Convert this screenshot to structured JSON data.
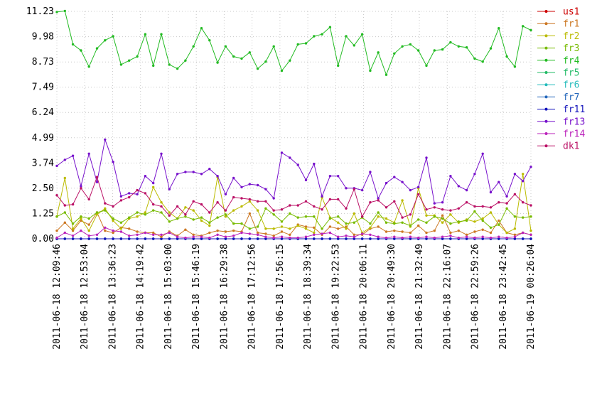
{
  "chart_data": {
    "type": "line",
    "title": "",
    "xlabel": "",
    "ylabel": "",
    "ylim": [
      0,
      11.23
    ],
    "grid": "dotted-both",
    "legend_position": "right",
    "yticks": [
      "0.00",
      "1.25",
      "2.50",
      "3.74",
      "4.99",
      "6.24",
      "7.49",
      "8.73",
      "9.98",
      "11.23"
    ],
    "xticks": [
      "2011-06-18 12:09:46",
      "2011-06-18 12:53:04",
      "2011-06-18 13:36:23",
      "2011-06-18 14:19:42",
      "2011-06-18 15:03:00",
      "2011-06-18 15:46:19",
      "2011-06-18 16:29:38",
      "2011-06-18 17:12:56",
      "2011-06-18 17:56:15",
      "2011-06-18 18:39:34",
      "2011-06-18 19:22:53",
      "2011-06-18 20:06:11",
      "2011-06-18 20:49:30",
      "2011-06-18 21:32:49",
      "2011-06-18 22:16:07",
      "2011-06-18 22:59:26",
      "2011-06-18 23:42:45",
      "2011-06-19 00:26:04"
    ],
    "points_per_series": 60,
    "series": [
      {
        "name": "us1",
        "color": "#cc0000",
        "values": [
          0,
          0,
          0,
          0,
          0,
          0,
          0,
          0,
          0,
          0,
          0,
          0,
          0,
          0,
          0,
          0,
          0,
          0,
          0,
          0,
          0,
          0,
          0,
          0,
          0,
          0,
          0,
          0,
          0,
          0,
          0,
          0,
          0,
          0,
          0,
          0,
          0,
          0,
          0,
          0,
          0,
          0,
          0,
          0,
          0,
          0,
          0,
          0,
          0,
          0,
          0,
          0,
          0,
          0,
          0,
          0,
          0,
          0,
          0,
          0
        ]
      },
      {
        "name": "fr1",
        "color": "#cc7722",
        "values": [
          0.4,
          0.8,
          0.4,
          0.9,
          0.7,
          1.3,
          0.4,
          0.3,
          0.55,
          0.5,
          0.35,
          0.3,
          0.3,
          0.1,
          0.35,
          0.15,
          0.45,
          0.2,
          0.15,
          0.3,
          0.4,
          0.35,
          0.4,
          0.35,
          1.25,
          0.3,
          0.25,
          0.15,
          0.35,
          0.2,
          0.7,
          0.6,
          0.55,
          0.2,
          0.6,
          0.5,
          0.6,
          0.2,
          0.2,
          0.5,
          0.6,
          0.35,
          0.4,
          0.35,
          0.3,
          0.65,
          0.3,
          0.4,
          1.15,
          0.3,
          0.4,
          0.2,
          0.35,
          0.45,
          0.3,
          0.9,
          0.3,
          0.2,
          0.3,
          0.2
        ]
      },
      {
        "name": "fr2",
        "color": "#bbbb00",
        "values": [
          1.1,
          3.0,
          0.5,
          1.0,
          0.4,
          1.2,
          1.5,
          0.9,
          0.5,
          1.0,
          1.1,
          1.3,
          2.55,
          1.8,
          1.3,
          1.0,
          1.55,
          1.4,
          0.9,
          0.65,
          3.05,
          1.1,
          1.4,
          1.6,
          1.85,
          1.4,
          0.5,
          0.5,
          0.6,
          0.5,
          0.65,
          0.5,
          0.3,
          2.05,
          1.05,
          0.8,
          0.5,
          1.25,
          0.3,
          0.55,
          1.1,
          1.0,
          0.8,
          1.9,
          0.6,
          2.5,
          1.15,
          1.15,
          0.8,
          1.2,
          0.8,
          0.95,
          0.85,
          1.0,
          1.3,
          0.7,
          0.3,
          0.5,
          3.2,
          0.4
        ]
      },
      {
        "name": "fr3",
        "color": "#77bb00",
        "values": [
          1.1,
          1.3,
          0.75,
          1.1,
          1.0,
          1.3,
          1.4,
          1.0,
          0.8,
          1.05,
          1.3,
          1.2,
          1.4,
          1.3,
          0.85,
          1.0,
          1.1,
          0.95,
          1.05,
          0.8,
          1.05,
          1.2,
          0.75,
          0.75,
          0.5,
          0.6,
          1.5,
          1.2,
          0.85,
          1.25,
          1.05,
          1.1,
          1.1,
          0.5,
          1.0,
          1.1,
          0.75,
          0.8,
          1.05,
          0.75,
          1.3,
          0.8,
          0.75,
          0.8,
          0.65,
          0.95,
          0.8,
          1.1,
          1.0,
          0.75,
          0.85,
          0.9,
          1.35,
          0.9,
          0.55,
          0.7,
          1.5,
          1.1,
          1.05,
          1.1
        ]
      },
      {
        "name": "fr4",
        "color": "#22bb22",
        "values": [
          11.2,
          11.25,
          9.6,
          9.3,
          8.5,
          9.4,
          9.8,
          10.0,
          8.6,
          8.8,
          9.0,
          10.1,
          8.55,
          10.1,
          8.6,
          8.4,
          8.8,
          9.5,
          10.4,
          9.8,
          8.7,
          9.5,
          9.0,
          8.9,
          9.2,
          8.4,
          8.75,
          9.5,
          8.3,
          8.8,
          9.6,
          9.65,
          10.0,
          10.1,
          10.45,
          8.55,
          10.0,
          9.55,
          10.1,
          8.3,
          9.2,
          8.1,
          9.15,
          9.5,
          9.6,
          9.3,
          8.55,
          9.3,
          9.35,
          9.7,
          9.5,
          9.45,
          8.9,
          8.75,
          9.4,
          10.4,
          9.0,
          8.5,
          10.5,
          10.3
        ]
      },
      {
        "name": "fr5",
        "color": "#22bb66",
        "values": [
          0,
          0,
          0,
          0,
          0,
          0,
          0,
          0,
          0,
          0,
          0,
          0,
          0,
          0,
          0,
          0,
          0,
          0,
          0,
          0,
          0,
          0,
          0,
          0,
          0,
          0,
          0,
          0,
          0,
          0,
          0,
          0,
          0,
          0,
          0,
          0,
          0,
          0,
          0,
          0,
          0,
          0,
          0,
          0,
          0,
          0,
          0,
          0,
          0,
          0,
          0,
          0,
          0,
          0,
          0,
          0,
          0,
          0,
          0,
          0
        ]
      },
      {
        "name": "fr6",
        "color": "#22bbbb",
        "values": [
          0,
          0,
          0,
          0,
          0,
          0,
          0,
          0,
          0,
          0,
          0,
          0,
          0,
          0,
          0,
          0,
          0,
          0,
          0,
          0,
          0,
          0,
          0,
          0,
          0,
          0,
          0,
          0,
          0,
          0,
          0,
          0,
          0,
          0,
          0,
          0,
          0,
          0,
          0,
          0,
          0,
          0,
          0,
          0,
          0,
          0,
          0,
          0,
          0,
          0,
          0,
          0,
          0,
          0,
          0,
          0,
          0,
          0,
          0,
          0
        ]
      },
      {
        "name": "fr7",
        "color": "#2266bb",
        "values": [
          0,
          0,
          0,
          0,
          0,
          0,
          0,
          0,
          0,
          0,
          0,
          0,
          0,
          0,
          0,
          0,
          0,
          0,
          0,
          0,
          0,
          0,
          0,
          0,
          0,
          0,
          0,
          0,
          0,
          0,
          0,
          0,
          0,
          0,
          0,
          0,
          0,
          0,
          0,
          0,
          0,
          0,
          0,
          0,
          0,
          0,
          0,
          0,
          0,
          0,
          0,
          0,
          0,
          0,
          0,
          0,
          0,
          0,
          0,
          0
        ]
      },
      {
        "name": "fr11",
        "color": "#1111bb",
        "values": [
          0,
          0,
          0,
          0,
          0,
          0,
          0,
          0,
          0,
          0,
          0,
          0,
          0,
          0,
          0,
          0,
          0,
          0,
          0,
          0,
          0,
          0,
          0,
          0,
          0,
          0,
          0,
          0,
          0,
          0,
          0,
          0,
          0,
          0,
          0,
          0,
          0,
          0,
          0,
          0,
          0,
          0,
          0,
          0,
          0,
          0,
          0,
          0,
          0,
          0,
          0,
          0,
          0,
          0,
          0,
          0,
          0,
          0,
          0,
          0
        ]
      },
      {
        "name": "fr13",
        "color": "#7711cc",
        "values": [
          3.6,
          3.9,
          4.1,
          2.6,
          4.2,
          2.8,
          4.9,
          3.8,
          2.1,
          2.25,
          2.2,
          3.1,
          2.75,
          4.2,
          2.45,
          3.2,
          3.3,
          3.3,
          3.2,
          3.45,
          3.1,
          2.2,
          3.0,
          2.55,
          2.7,
          2.65,
          2.45,
          2.0,
          4.25,
          4.0,
          3.65,
          2.9,
          3.7,
          2.1,
          3.1,
          3.1,
          2.5,
          2.5,
          2.4,
          3.3,
          2.0,
          2.75,
          3.05,
          2.8,
          2.4,
          2.55,
          4.0,
          1.75,
          1.8,
          3.1,
          2.6,
          2.4,
          3.2,
          4.2,
          2.3,
          2.8,
          2.1,
          3.2,
          2.85,
          3.55
        ]
      },
      {
        "name": "fr14",
        "color": "#bb22bb",
        "values": [
          0.05,
          0.3,
          0.15,
          0.4,
          0.15,
          0.2,
          0.55,
          0.4,
          0.35,
          0.15,
          0.2,
          0.3,
          0.2,
          0.2,
          0.3,
          0.1,
          0.05,
          0.1,
          0.1,
          0.05,
          0.2,
          0.1,
          0.15,
          0.3,
          0.25,
          0.2,
          0.1,
          0.05,
          0.1,
          0.05,
          0.05,
          0.1,
          0.2,
          0.25,
          0.3,
          0.1,
          0.15,
          0.1,
          0.25,
          0.2,
          0.1,
          0.05,
          0.1,
          0.05,
          0.1,
          0.05,
          0.1,
          0.05,
          0.1,
          0.15,
          0.05,
          0.1,
          0.05,
          0.1,
          0.05,
          0.1,
          0.05,
          0.1,
          0.3,
          0.2
        ]
      },
      {
        "name": "dk1",
        "color": "#bb1166",
        "values": [
          2.15,
          1.65,
          1.7,
          2.5,
          1.95,
          3.05,
          1.75,
          1.6,
          1.9,
          2.05,
          2.4,
          2.25,
          1.7,
          1.6,
          1.15,
          1.6,
          1.2,
          1.85,
          1.7,
          1.3,
          1.8,
          1.4,
          2.05,
          2.0,
          1.95,
          1.85,
          1.85,
          1.4,
          1.45,
          1.65,
          1.65,
          1.85,
          1.6,
          1.45,
          1.95,
          1.95,
          1.5,
          2.45,
          1.1,
          1.8,
          1.9,
          1.55,
          1.85,
          1.05,
          1.2,
          2.2,
          1.45,
          1.55,
          1.45,
          1.4,
          1.5,
          1.8,
          1.6,
          1.6,
          1.55,
          1.8,
          1.75,
          2.2,
          1.8,
          1.65
        ]
      }
    ]
  }
}
